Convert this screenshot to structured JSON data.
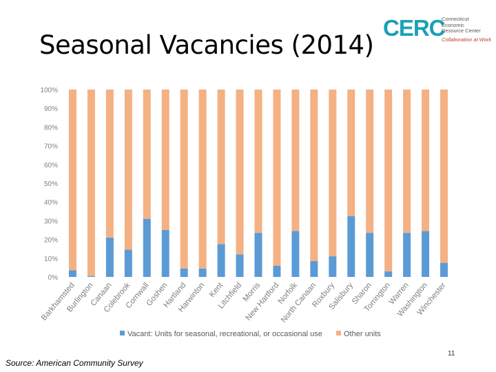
{
  "header": {
    "title": "Seasonal Vacancies (2014)"
  },
  "logo": {
    "mark": "CERC",
    "org": "Connecticut\nEconomic\nResource Center",
    "tagline": "Collaboration at Work"
  },
  "footer": {
    "source": "Source: American Community Survey",
    "page": "11"
  },
  "colors": {
    "vacant": "#5b9bd5",
    "other": "#f4b183",
    "axis_text": "#7f7f7f"
  },
  "chart_data": {
    "type": "bar",
    "stacked": true,
    "percent": true,
    "categories": [
      "Barkhamsted",
      "Burlington",
      "Canaan",
      "Colebrook",
      "Cornwall",
      "Goshen",
      "Hartland",
      "Harwinton",
      "Kent",
      "Litchfield",
      "Morris",
      "New Hartford",
      "Norfolk",
      "North Canaan",
      "Roxbury",
      "Salisbury",
      "Sharon",
      "Torrington",
      "Warren",
      "Washington",
      "Winchester"
    ],
    "series": [
      {
        "name": "Vacant: Units for seasonal, recreational, or occasional use",
        "values": [
          3.5,
          0.5,
          21,
          14.5,
          31,
          25,
          4.5,
          4.5,
          17.5,
          12,
          23.5,
          6,
          24.5,
          8.5,
          11,
          32.5,
          23.5,
          3,
          23.5,
          24.5,
          7.5
        ]
      },
      {
        "name": "Other units",
        "values": [
          96.5,
          99.5,
          79,
          85.5,
          69,
          75,
          95.5,
          95.5,
          82.5,
          88,
          76.5,
          94,
          75.5,
          91.5,
          89,
          67.5,
          76.5,
          97,
          76.5,
          75.5,
          92.5
        ]
      }
    ],
    "ylim": [
      0,
      100
    ],
    "yticks": [
      "0%",
      "10%",
      "20%",
      "30%",
      "40%",
      "50%",
      "60%",
      "70%",
      "80%",
      "90%",
      "100%"
    ],
    "legend": "bottom"
  }
}
